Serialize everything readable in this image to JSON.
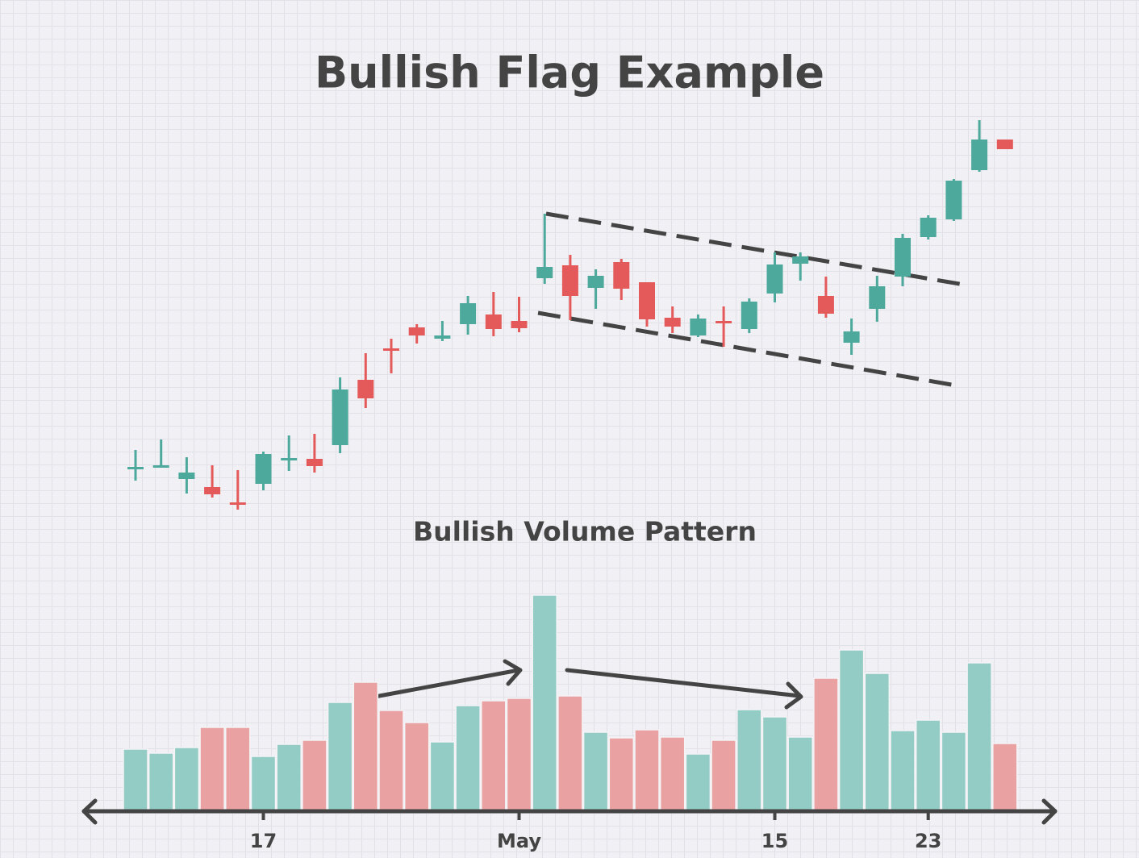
{
  "chart_data": [
    {
      "type": "candlestick",
      "title": "Bullish Flag Example",
      "up_color": "#4da99c",
      "down_color": "#e45a5a",
      "ylim": [
        0,
        50
      ],
      "open": [
        5.8,
        6.1,
        4.6,
        3.6,
        1.7,
        4.0,
        7.0,
        7.1,
        8.8,
        16.9,
        20.8,
        23.4,
        22.0,
        23.8,
        25.0,
        24.2,
        29.5,
        31.1,
        28.3,
        31.5,
        29.0,
        24.6,
        22.4,
        24.2,
        23.2,
        27.6,
        31.3,
        27.3,
        21.5,
        25.7,
        29.7,
        34.6,
        36.8,
        42.9,
        46.7
      ],
      "high": [
        8.2,
        9.5,
        7.3,
        6.3,
        5.7,
        8.0,
        10.0,
        10.2,
        17.2,
        20.2,
        22.0,
        23.8,
        24.2,
        27.3,
        27.8,
        27.2,
        37.5,
        32.4,
        30.6,
        31.9,
        29.0,
        26.0,
        25.0,
        26.0,
        27.0,
        32.7,
        32.7,
        29.7,
        24.5,
        29.8,
        35.0,
        37.3,
        41.8,
        49.1,
        46.7
      ],
      "low": [
        4.4,
        6.1,
        2.8,
        2.3,
        0.8,
        3.2,
        5.6,
        5.4,
        7.8,
        13.4,
        17.7,
        21.4,
        21.7,
        22.5,
        22.3,
        22.8,
        28.8,
        24.3,
        25.7,
        26.8,
        23.5,
        22.7,
        22.2,
        21.0,
        22.7,
        26.5,
        29.2,
        24.6,
        20.0,
        24.1,
        28.5,
        34.3,
        36.6,
        42.7,
        45.5
      ],
      "close": [
        6.1,
        6.3,
        5.4,
        2.7,
        1.4,
        7.7,
        7.2,
        6.2,
        15.7,
        14.6,
        20.6,
        22.4,
        22.4,
        26.4,
        23.2,
        23.3,
        30.9,
        27.3,
        29.8,
        28.2,
        24.4,
        23.5,
        24.5,
        24.1,
        26.6,
        31.2,
        32.2,
        25.1,
        22.9,
        28.5,
        34.5,
        37.0,
        41.6,
        46.7,
        45.5
      ]
    },
    {
      "type": "bar",
      "title": "Bullish Volume Pattern",
      "up_color": "#93cbc5",
      "down_color": "#e9a1a1",
      "ylim": [
        0,
        300
      ],
      "categories": [
        null,
        null,
        null,
        null,
        null,
        "17",
        null,
        null,
        null,
        null,
        null,
        null,
        null,
        null,
        null,
        "May",
        null,
        null,
        null,
        null,
        null,
        null,
        null,
        null,
        null,
        "15",
        null,
        null,
        null,
        null,
        null,
        "23",
        null,
        null,
        null
      ],
      "values": [
        76,
        71,
        78,
        103,
        103,
        67,
        82,
        87,
        134,
        159,
        124,
        109,
        85,
        130,
        136,
        139,
        267,
        142,
        97,
        90,
        100,
        91,
        70,
        87,
        125,
        116,
        91,
        164,
        199,
        170,
        99,
        112,
        97,
        183,
        83
      ]
    }
  ]
}
